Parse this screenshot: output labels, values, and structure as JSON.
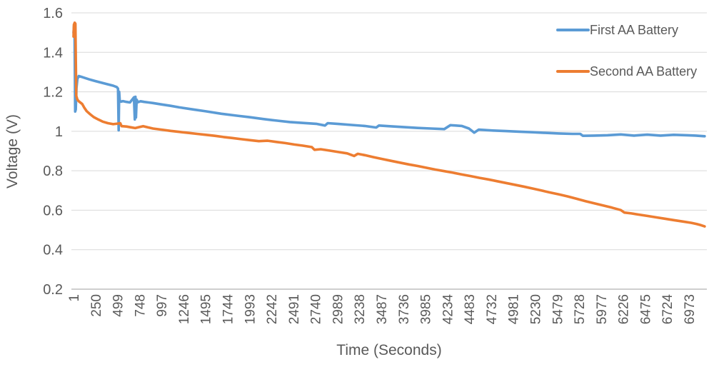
{
  "chart_data": {
    "type": "line",
    "title": "",
    "xlabel": "Time (Seconds)",
    "ylabel": "Voltage (V)",
    "grid": true,
    "legend_position": "top-right",
    "ylim": [
      0.2,
      1.6
    ],
    "xlim": [
      1,
      7150
    ],
    "y_tick_values": [
      0.2,
      0.4,
      0.6,
      0.8,
      1.0,
      1.2,
      1.4,
      1.6
    ],
    "y_tick_labels": [
      "0.2",
      "0.4",
      "0.6",
      "0.8",
      "1",
      "1.2",
      "1.4",
      "1.6"
    ],
    "x_tick_values": [
      1,
      250,
      499,
      748,
      997,
      1246,
      1495,
      1744,
      1993,
      2242,
      2491,
      2740,
      2989,
      3238,
      3487,
      3736,
      3985,
      4234,
      4483,
      4732,
      4981,
      5230,
      5479,
      5728,
      5977,
      6226,
      6475,
      6724,
      6973
    ],
    "x_tick_labels": [
      "1",
      "250",
      "499",
      "748",
      "997",
      "1246",
      "1495",
      "1744",
      "1993",
      "2242",
      "2491",
      "2740",
      "2989",
      "3238",
      "3487",
      "3736",
      "3985",
      "4234",
      "4483",
      "4732",
      "4981",
      "5230",
      "5479",
      "5728",
      "5977",
      "6226",
      "6475",
      "6724",
      "6973"
    ],
    "colors": {
      "gridline": "#D9D9D9",
      "axis_line": "#BFBFBF",
      "text": "#595959"
    },
    "series": [
      {
        "name": "First AA Battery",
        "color": "#5B9BD5",
        "points": [
          [
            1,
            1.5
          ],
          [
            6,
            1.53
          ],
          [
            12,
            1.52
          ],
          [
            16,
            1.28
          ],
          [
            20,
            1.1
          ],
          [
            26,
            1.11
          ],
          [
            34,
            1.22
          ],
          [
            45,
            1.265
          ],
          [
            60,
            1.28
          ],
          [
            90,
            1.276
          ],
          [
            130,
            1.27
          ],
          [
            180,
            1.263
          ],
          [
            250,
            1.254
          ],
          [
            320,
            1.246
          ],
          [
            390,
            1.238
          ],
          [
            450,
            1.231
          ],
          [
            490,
            1.224
          ],
          [
            505,
            1.216
          ],
          [
            512,
            1.005
          ],
          [
            518,
            1.2
          ],
          [
            524,
            1.155
          ],
          [
            540,
            1.15
          ],
          [
            560,
            1.153
          ],
          [
            600,
            1.149
          ],
          [
            640,
            1.146
          ],
          [
            685,
            1.172
          ],
          [
            695,
            1.06
          ],
          [
            702,
            1.175
          ],
          [
            708,
            1.07
          ],
          [
            716,
            1.16
          ],
          [
            730,
            1.147
          ],
          [
            760,
            1.152
          ],
          [
            800,
            1.149
          ],
          [
            850,
            1.146
          ],
          [
            900,
            1.143
          ],
          [
            1000,
            1.136
          ],
          [
            1100,
            1.129
          ],
          [
            1200,
            1.121
          ],
          [
            1350,
            1.111
          ],
          [
            1500,
            1.101
          ],
          [
            1675,
            1.089
          ],
          [
            1850,
            1.079
          ],
          [
            2000,
            1.071
          ],
          [
            2150,
            1.062
          ],
          [
            2300,
            1.054
          ],
          [
            2450,
            1.047
          ],
          [
            2600,
            1.042
          ],
          [
            2750,
            1.038
          ],
          [
            2850,
            1.029
          ],
          [
            2880,
            1.041
          ],
          [
            3000,
            1.037
          ],
          [
            3150,
            1.032
          ],
          [
            3300,
            1.027
          ],
          [
            3430,
            1.019
          ],
          [
            3460,
            1.029
          ],
          [
            3600,
            1.025
          ],
          [
            3750,
            1.021
          ],
          [
            3900,
            1.017
          ],
          [
            4050,
            1.014
          ],
          [
            4200,
            1.011
          ],
          [
            4270,
            1.031
          ],
          [
            4400,
            1.027
          ],
          [
            4480,
            1.014
          ],
          [
            4540,
            0.993
          ],
          [
            4590,
            1.008
          ],
          [
            4750,
            1.004
          ],
          [
            4900,
            1.001
          ],
          [
            5050,
            0.998
          ],
          [
            5200,
            0.995
          ],
          [
            5350,
            0.992
          ],
          [
            5500,
            0.989
          ],
          [
            5650,
            0.987
          ],
          [
            5740,
            0.987
          ],
          [
            5770,
            0.977
          ],
          [
            5900,
            0.978
          ],
          [
            6050,
            0.98
          ],
          [
            6200,
            0.984
          ],
          [
            6350,
            0.978
          ],
          [
            6500,
            0.983
          ],
          [
            6650,
            0.978
          ],
          [
            6800,
            0.982
          ],
          [
            6950,
            0.98
          ],
          [
            7050,
            0.978
          ],
          [
            7150,
            0.975
          ]
        ]
      },
      {
        "name": "Second AA Battery",
        "color": "#ED7D31",
        "points": [
          [
            1,
            1.48
          ],
          [
            5,
            1.54
          ],
          [
            14,
            1.55
          ],
          [
            22,
            1.545
          ],
          [
            27,
            1.35
          ],
          [
            32,
            1.18
          ],
          [
            45,
            1.16
          ],
          [
            60,
            1.152
          ],
          [
            80,
            1.145
          ],
          [
            100,
            1.138
          ],
          [
            125,
            1.118
          ],
          [
            150,
            1.102
          ],
          [
            190,
            1.086
          ],
          [
            230,
            1.072
          ],
          [
            280,
            1.06
          ],
          [
            330,
            1.049
          ],
          [
            390,
            1.041
          ],
          [
            450,
            1.036
          ],
          [
            500,
            1.039
          ],
          [
            530,
            1.041
          ],
          [
            545,
            1.026
          ],
          [
            600,
            1.024
          ],
          [
            650,
            1.02
          ],
          [
            700,
            1.016
          ],
          [
            740,
            1.021
          ],
          [
            790,
            1.026
          ],
          [
            840,
            1.02
          ],
          [
            900,
            1.014
          ],
          [
            1000,
            1.008
          ],
          [
            1100,
            1.002
          ],
          [
            1200,
            0.997
          ],
          [
            1300,
            0.992
          ],
          [
            1400,
            0.987
          ],
          [
            1500,
            0.982
          ],
          [
            1600,
            0.977
          ],
          [
            1700,
            0.971
          ],
          [
            1800,
            0.966
          ],
          [
            1900,
            0.96
          ],
          [
            2000,
            0.955
          ],
          [
            2100,
            0.95
          ],
          [
            2200,
            0.952
          ],
          [
            2300,
            0.946
          ],
          [
            2400,
            0.94
          ],
          [
            2500,
            0.933
          ],
          [
            2600,
            0.927
          ],
          [
            2700,
            0.92
          ],
          [
            2730,
            0.906
          ],
          [
            2800,
            0.909
          ],
          [
            2900,
            0.902
          ],
          [
            3000,
            0.895
          ],
          [
            3100,
            0.888
          ],
          [
            3180,
            0.875
          ],
          [
            3220,
            0.886
          ],
          [
            3300,
            0.879
          ],
          [
            3400,
            0.869
          ],
          [
            3500,
            0.859
          ],
          [
            3600,
            0.85
          ],
          [
            3700,
            0.841
          ],
          [
            3800,
            0.832
          ],
          [
            3900,
            0.824
          ],
          [
            4000,
            0.815
          ],
          [
            4100,
            0.806
          ],
          [
            4200,
            0.798
          ],
          [
            4300,
            0.79
          ],
          [
            4400,
            0.781
          ],
          [
            4500,
            0.773
          ],
          [
            4600,
            0.764
          ],
          [
            4700,
            0.756
          ],
          [
            4800,
            0.747
          ],
          [
            4900,
            0.738
          ],
          [
            5000,
            0.729
          ],
          [
            5100,
            0.72
          ],
          [
            5200,
            0.71
          ],
          [
            5300,
            0.7
          ],
          [
            5400,
            0.69
          ],
          [
            5500,
            0.68
          ],
          [
            5600,
            0.67
          ],
          [
            5700,
            0.658
          ],
          [
            5800,
            0.646
          ],
          [
            5900,
            0.635
          ],
          [
            6000,
            0.624
          ],
          [
            6100,
            0.613
          ],
          [
            6200,
            0.601
          ],
          [
            6240,
            0.588
          ],
          [
            6320,
            0.584
          ],
          [
            6400,
            0.578
          ],
          [
            6500,
            0.571
          ],
          [
            6600,
            0.564
          ],
          [
            6700,
            0.557
          ],
          [
            6800,
            0.55
          ],
          [
            6900,
            0.543
          ],
          [
            7000,
            0.536
          ],
          [
            7060,
            0.53
          ],
          [
            7110,
            0.524
          ],
          [
            7150,
            0.518
          ]
        ]
      }
    ]
  }
}
